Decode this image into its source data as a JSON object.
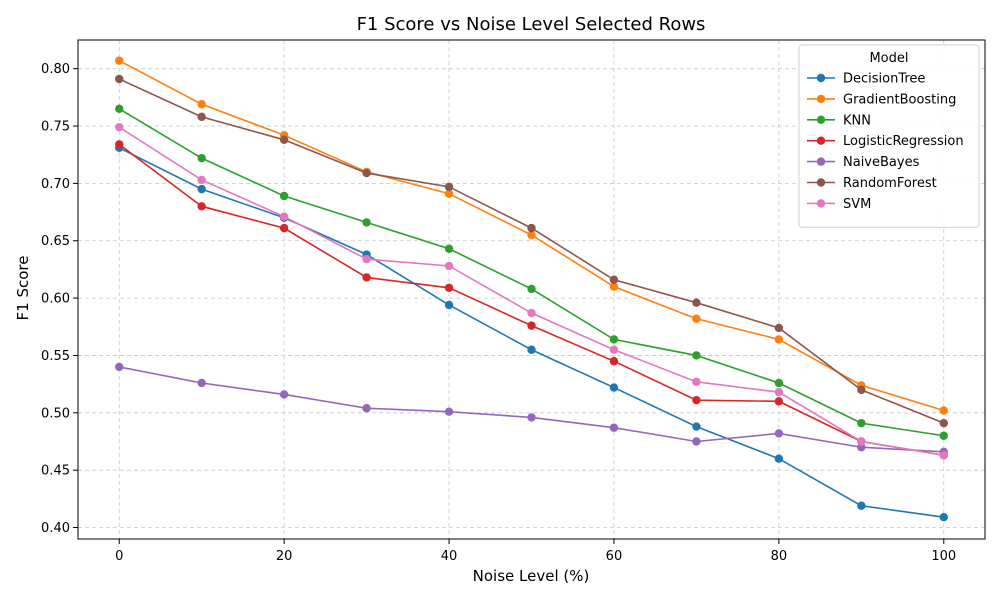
{
  "chart_data": {
    "type": "line",
    "title": "F1 Score vs Noise Level Selected Rows",
    "xlabel": "Noise Level (%)",
    "ylabel": "F1 Score",
    "x": [
      0,
      10,
      20,
      30,
      40,
      50,
      60,
      70,
      80,
      90,
      100
    ],
    "xlim": [
      -5,
      105
    ],
    "ylim": [
      0.39,
      0.825
    ],
    "xticks": [
      0,
      20,
      40,
      60,
      80,
      100
    ],
    "yticks": [
      0.4,
      0.45,
      0.5,
      0.55,
      0.6,
      0.65,
      0.7,
      0.75,
      0.8
    ],
    "grid": true,
    "legend": {
      "title": "Model",
      "placement": "top-right"
    },
    "series": [
      {
        "name": "DecisionTree",
        "color": "#1f77b4",
        "values": [
          0.731,
          0.695,
          0.67,
          0.638,
          0.594,
          0.555,
          0.522,
          0.488,
          0.46,
          0.419,
          0.409
        ]
      },
      {
        "name": "GradientBoosting",
        "color": "#ff7f0e",
        "values": [
          0.807,
          0.769,
          0.742,
          0.71,
          0.691,
          0.655,
          0.61,
          0.582,
          0.564,
          0.524,
          0.502
        ]
      },
      {
        "name": "KNN",
        "color": "#2ca02c",
        "values": [
          0.765,
          0.722,
          0.689,
          0.666,
          0.643,
          0.608,
          0.564,
          0.55,
          0.526,
          0.491,
          0.48
        ]
      },
      {
        "name": "LogisticRegression",
        "color": "#d62728",
        "values": [
          0.734,
          0.68,
          0.661,
          0.618,
          0.609,
          0.576,
          0.545,
          0.511,
          0.51,
          0.475,
          0.463
        ]
      },
      {
        "name": "NaiveBayes",
        "color": "#9467bd",
        "values": [
          0.54,
          0.526,
          0.516,
          0.504,
          0.501,
          0.496,
          0.487,
          0.475,
          0.482,
          0.47,
          0.466
        ]
      },
      {
        "name": "RandomForest",
        "color": "#8c564b",
        "values": [
          0.791,
          0.758,
          0.738,
          0.709,
          0.697,
          0.661,
          0.616,
          0.596,
          0.574,
          0.52,
          0.491
        ]
      },
      {
        "name": "SVM",
        "color": "#e377c2",
        "values": [
          0.749,
          0.703,
          0.671,
          0.634,
          0.628,
          0.587,
          0.555,
          0.527,
          0.518,
          0.475,
          0.463
        ]
      }
    ]
  }
}
